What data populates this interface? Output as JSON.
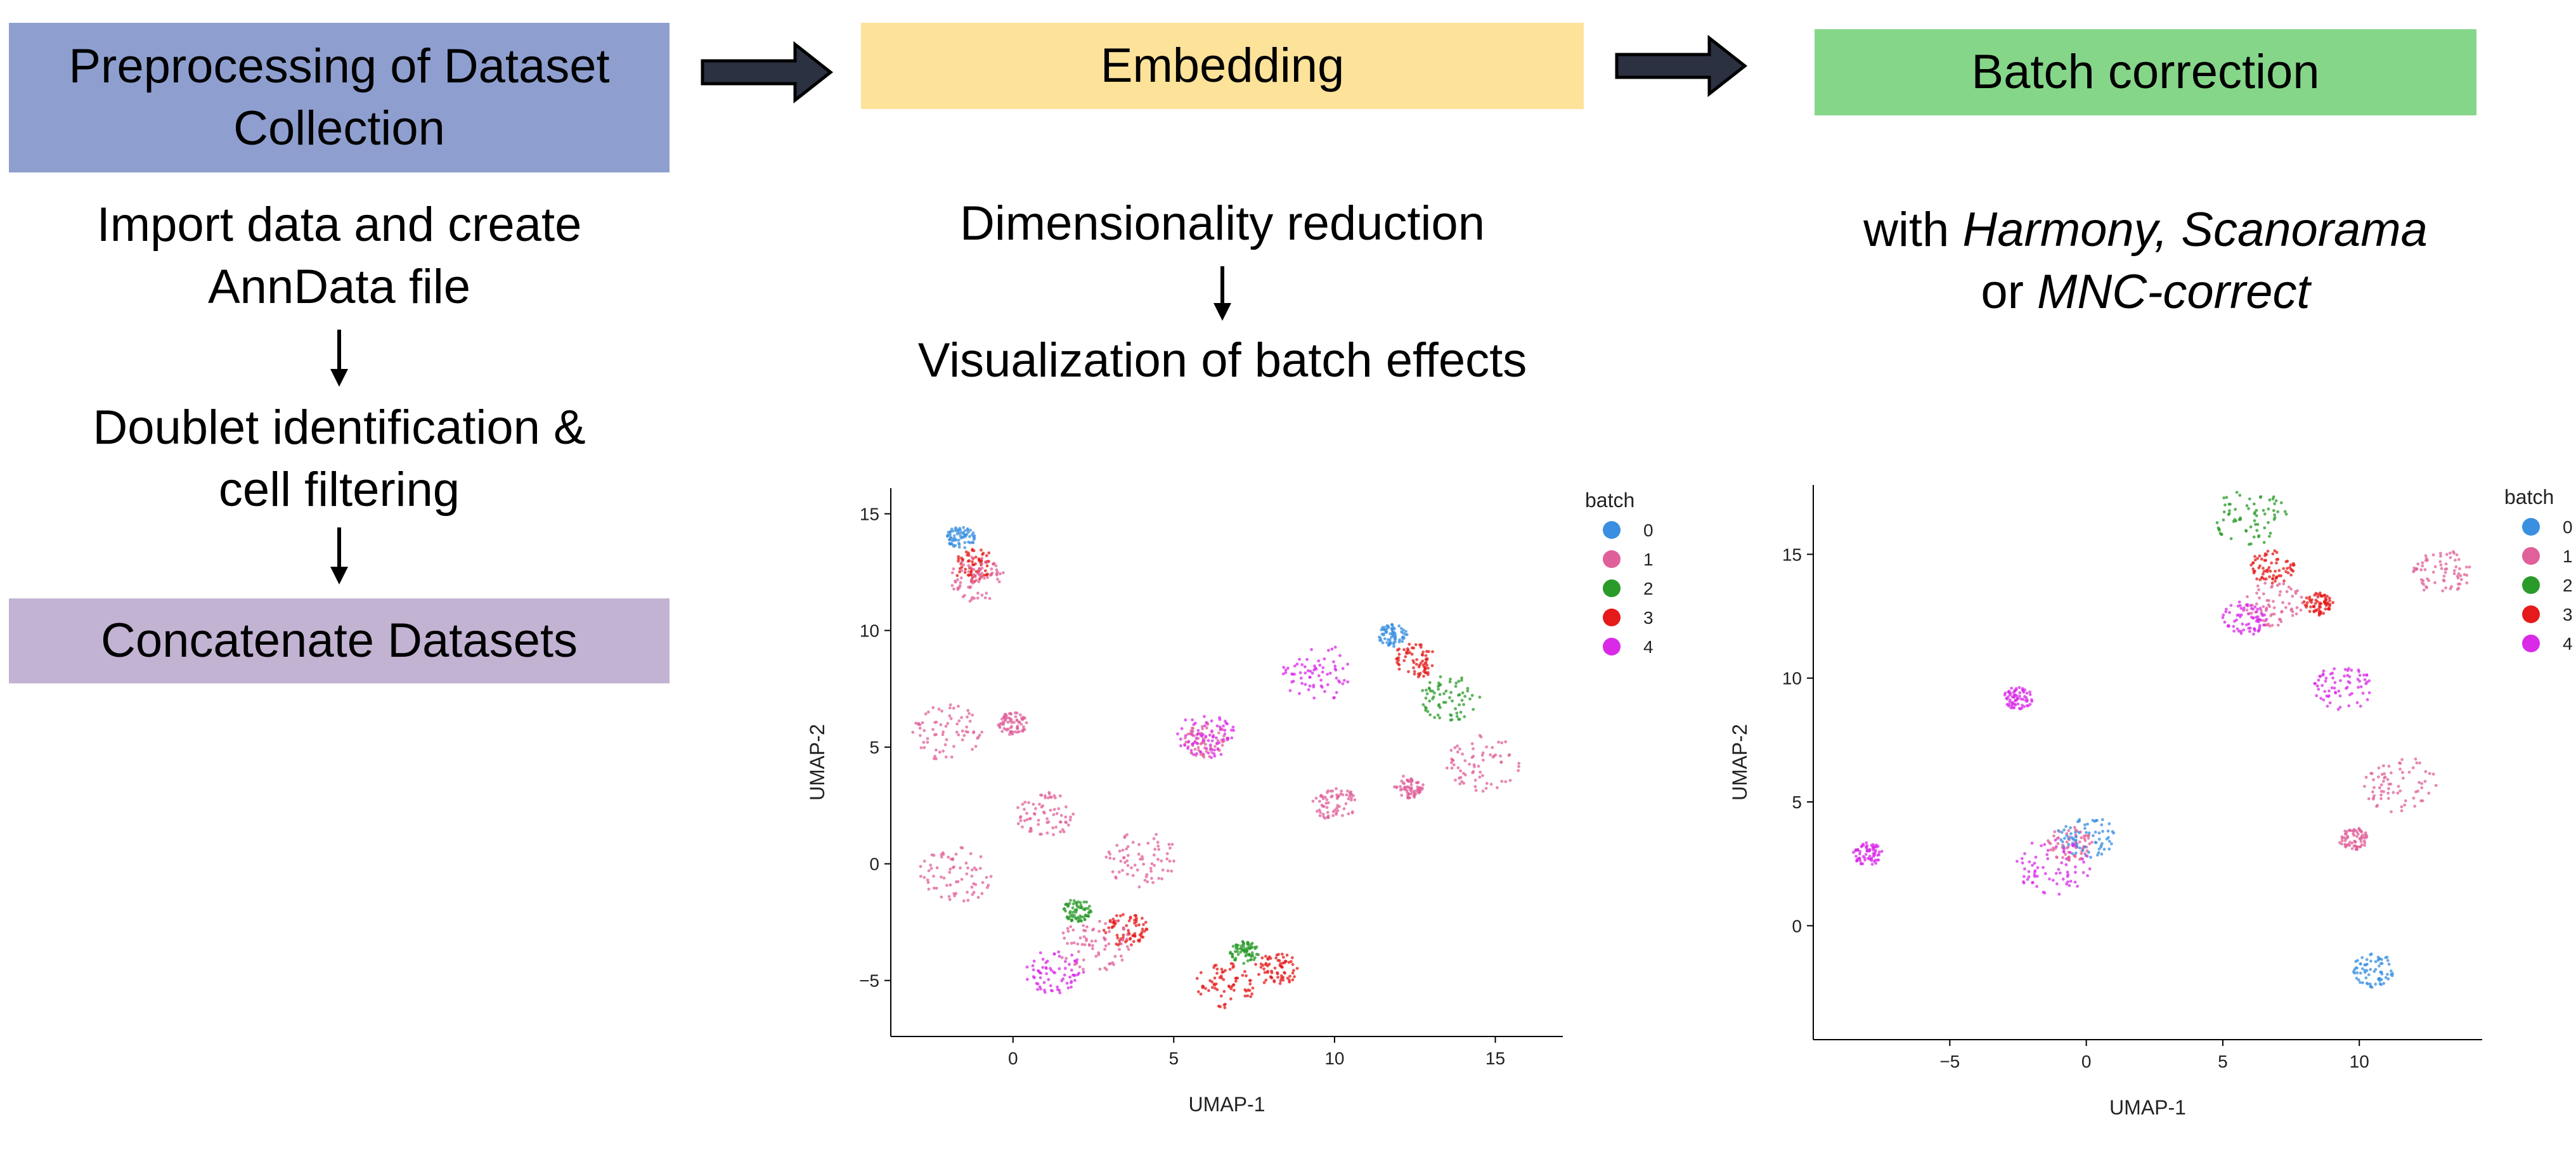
{
  "columns": {
    "preprocessing": {
      "title": "Preprocessing of Dataset Collection",
      "title_lines": [
        "Preprocessing of Dataset",
        "Collection"
      ],
      "steps": [
        {
          "lines": [
            "Import data and create",
            "AnnData file"
          ]
        },
        {
          "lines": [
            "Doublet identification &",
            "cell filtering"
          ]
        }
      ],
      "final_box": "Concatenate Datasets"
    },
    "embedding": {
      "title": "Embedding",
      "steps": [
        {
          "lines": [
            "Dimensionality reduction"
          ]
        },
        {
          "lines": [
            "Visualization of batch effects"
          ]
        }
      ]
    },
    "batch_correction": {
      "title": "Batch correction",
      "desc_prefix": "with ",
      "desc_methods_1": "Harmony, Scanorama",
      "desc_line2_prefix": "or ",
      "desc_methods_2": "MNC-correct"
    }
  },
  "colors": {
    "preprocessing_box": "#8e9fcf",
    "embedding_box": "#fde29a",
    "batch_box": "#86d68a",
    "concatenate_box": "#c2b3d3",
    "arrow_fill": "#2b3140",
    "batch_0": "#3a8fe0",
    "batch_1": "#e0609a",
    "batch_2": "#2a9a2a",
    "batch_3": "#e51a1a",
    "batch_4": "#d92ae8"
  },
  "chart_data": [
    {
      "type": "scatter",
      "title": "",
      "xlabel": "UMAP-1",
      "ylabel": "UMAP-2",
      "xlim": [
        -3.8,
        17.1
      ],
      "ylim": [
        -7.4,
        16.1
      ],
      "xticks": [
        0,
        5,
        10,
        15
      ],
      "yticks": [
        -5,
        0,
        5,
        10,
        15
      ],
      "legend_title": "batch",
      "legend_position": "top-right",
      "legend": [
        "0",
        "1",
        "2",
        "3",
        "4"
      ],
      "clusters": [
        {
          "x": -1.6,
          "y": 14.0,
          "batch": "0"
        },
        {
          "x": -1.2,
          "y": 12.8,
          "batch": "3"
        },
        {
          "x": -1.1,
          "y": 12.2,
          "batch": "1"
        },
        {
          "x": -2.0,
          "y": 5.6,
          "batch": "1"
        },
        {
          "x": 0.0,
          "y": 6.0,
          "batch": "1"
        },
        {
          "x": 6.0,
          "y": 5.3,
          "batch": "1"
        },
        {
          "x": 6.0,
          "y": 5.5,
          "batch": "4"
        },
        {
          "x": 9.5,
          "y": 8.2,
          "batch": "4"
        },
        {
          "x": 11.8,
          "y": 9.8,
          "batch": "0"
        },
        {
          "x": 12.5,
          "y": 8.7,
          "batch": "3"
        },
        {
          "x": 13.6,
          "y": 7.1,
          "batch": "2"
        },
        {
          "x": 14.6,
          "y": 4.3,
          "batch": "1"
        },
        {
          "x": 12.3,
          "y": 3.3,
          "batch": "1"
        },
        {
          "x": 10.0,
          "y": 2.6,
          "batch": "1"
        },
        {
          "x": 1.0,
          "y": 2.1,
          "batch": "1"
        },
        {
          "x": -1.8,
          "y": -0.5,
          "batch": "1"
        },
        {
          "x": 2.0,
          "y": -2.0,
          "batch": "2"
        },
        {
          "x": 3.5,
          "y": -2.8,
          "batch": "3"
        },
        {
          "x": 1.3,
          "y": -4.6,
          "batch": "4"
        },
        {
          "x": 2.5,
          "y": -3.4,
          "batch": "1"
        },
        {
          "x": 7.2,
          "y": -3.8,
          "batch": "2"
        },
        {
          "x": 8.2,
          "y": -4.5,
          "batch": "3"
        },
        {
          "x": 6.6,
          "y": -5.2,
          "batch": "3"
        },
        {
          "x": 4.0,
          "y": 0.2,
          "batch": "1"
        }
      ]
    },
    {
      "type": "scatter",
      "title": "",
      "xlabel": "UMAP-1",
      "ylabel": "UMAP-2",
      "xlim": [
        -10.0,
        14.5
      ],
      "ylim": [
        -4.6,
        17.8
      ],
      "xticks": [
        -5,
        0,
        5,
        10
      ],
      "yticks": [
        0,
        5,
        10,
        15
      ],
      "legend_title": "batch",
      "legend_position": "top-right",
      "legend": [
        "0",
        "1",
        "2",
        "3",
        "4"
      ],
      "clusters": [
        {
          "x": -8.0,
          "y": 2.9,
          "batch": "4"
        },
        {
          "x": -0.6,
          "y": 3.3,
          "batch": "1"
        },
        {
          "x": 0.0,
          "y": 3.6,
          "batch": "0"
        },
        {
          "x": -1.2,
          "y": 2.4,
          "batch": "4"
        },
        {
          "x": -2.5,
          "y": 9.2,
          "batch": "4"
        },
        {
          "x": 6.8,
          "y": 14.5,
          "batch": "3"
        },
        {
          "x": 6.9,
          "y": 13.0,
          "batch": "1"
        },
        {
          "x": 6.0,
          "y": 16.5,
          "batch": "2"
        },
        {
          "x": 8.5,
          "y": 13.0,
          "batch": "3"
        },
        {
          "x": 5.8,
          "y": 12.4,
          "batch": "4"
        },
        {
          "x": 9.4,
          "y": 9.6,
          "batch": "4"
        },
        {
          "x": 11.5,
          "y": 5.7,
          "batch": "1"
        },
        {
          "x": 9.8,
          "y": 3.5,
          "batch": "1"
        },
        {
          "x": 10.5,
          "y": -1.8,
          "batch": "0"
        },
        {
          "x": 13.0,
          "y": 14.3,
          "batch": "1"
        }
      ]
    }
  ]
}
